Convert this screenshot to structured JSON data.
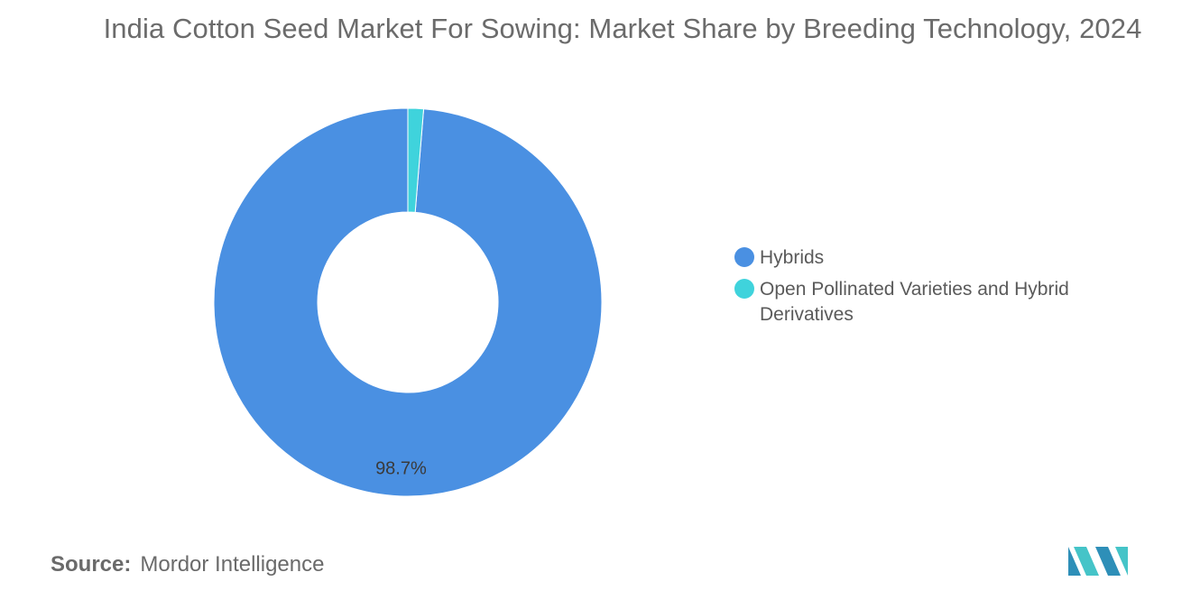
{
  "title": "India Cotton Seed Market For Sowing: Market Share by Breeding Technology, 2024",
  "chart_data": {
    "type": "pie",
    "donut": true,
    "title": "India Cotton Seed Market For Sowing: Market Share by Breeding Technology, 2024",
    "categories": [
      "Hybrids",
      "Open Pollinated Varieties and Hybrid Derivatives"
    ],
    "values": [
      98.7,
      1.3
    ],
    "unit": "%",
    "data_labels": [
      "98.7%",
      ""
    ],
    "colors": [
      "#4a90e2",
      "#3fd3dc"
    ],
    "legend_position": "right"
  },
  "legend": [
    {
      "label": "Hybrids",
      "color": "#4a90e2"
    },
    {
      "label": "Open Pollinated Varieties and Hybrid Derivatives",
      "color": "#3fd3dc"
    }
  ],
  "source": {
    "label": "Source:",
    "text": "Mordor Intelligence"
  },
  "logo": {
    "icon": "mordor-intelligence-logo",
    "colors": [
      "#2e8fb8",
      "#45c4c8"
    ]
  }
}
